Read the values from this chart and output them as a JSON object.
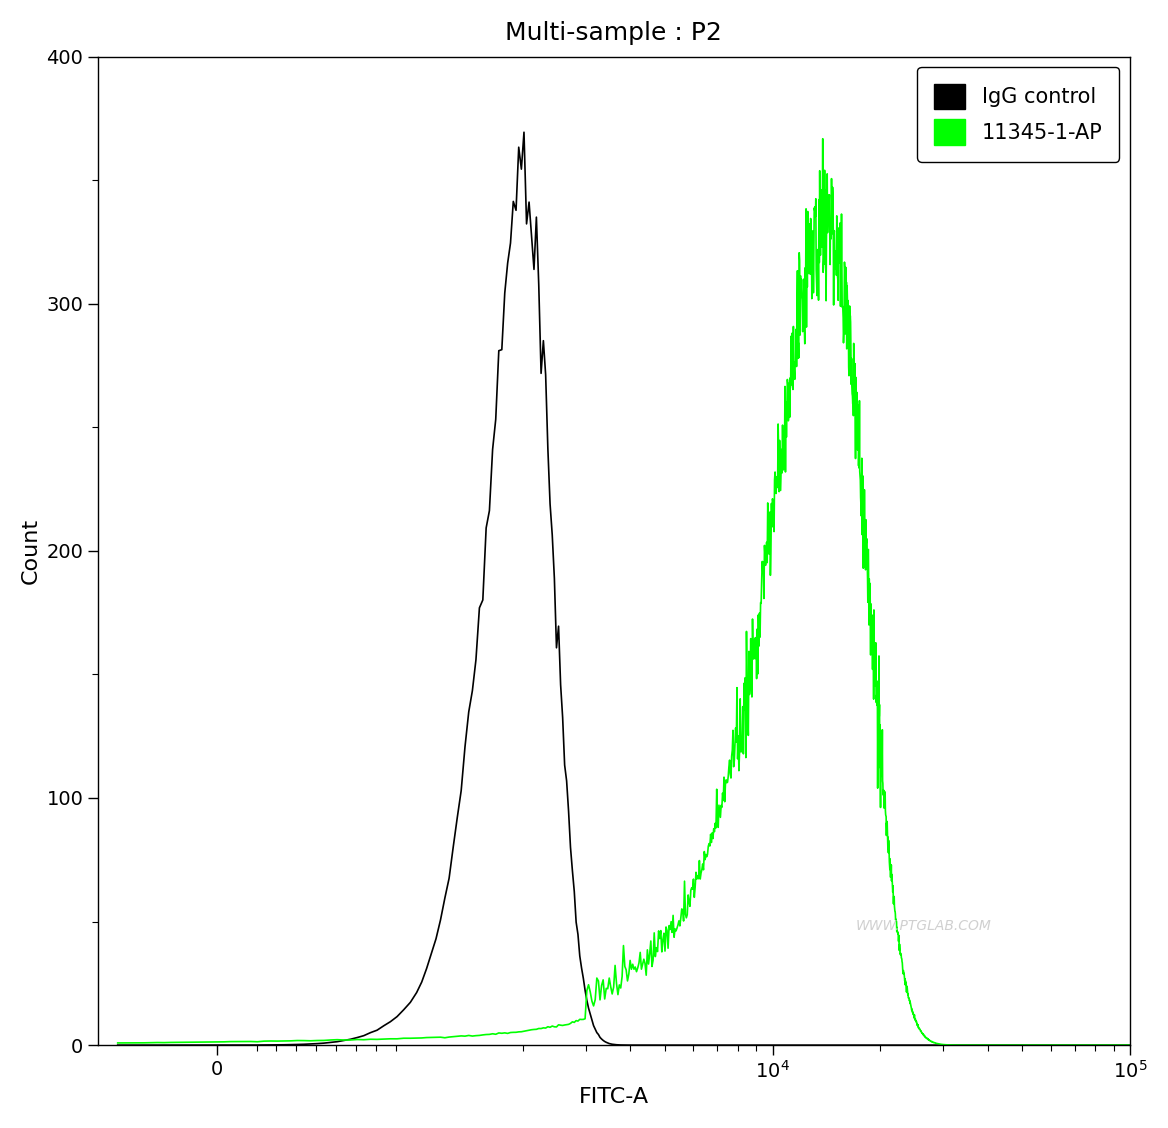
{
  "title": "Multi-sample : P2",
  "xlabel": "FITC-A",
  "ylabel": "Count",
  "ylim": [
    0,
    400
  ],
  "yticks": [
    0,
    100,
    200,
    300,
    400
  ],
  "background_color": "#ffffff",
  "plot_bg_color": "#ffffff",
  "black_curve_color": "#000000",
  "green_curve_color": "#00ff00",
  "legend_labels": [
    "IgG control",
    "11345-1-AP"
  ],
  "watermark": "WWW.PTGLAB.COM",
  "black_mean": 2000,
  "black_peak_count": 348,
  "black_sigma": 420,
  "green_mean": 14000,
  "green_peak_count": 335,
  "green_sigma": 4200,
  "title_fontsize": 18,
  "axis_label_fontsize": 16,
  "tick_fontsize": 14,
  "legend_fontsize": 15
}
